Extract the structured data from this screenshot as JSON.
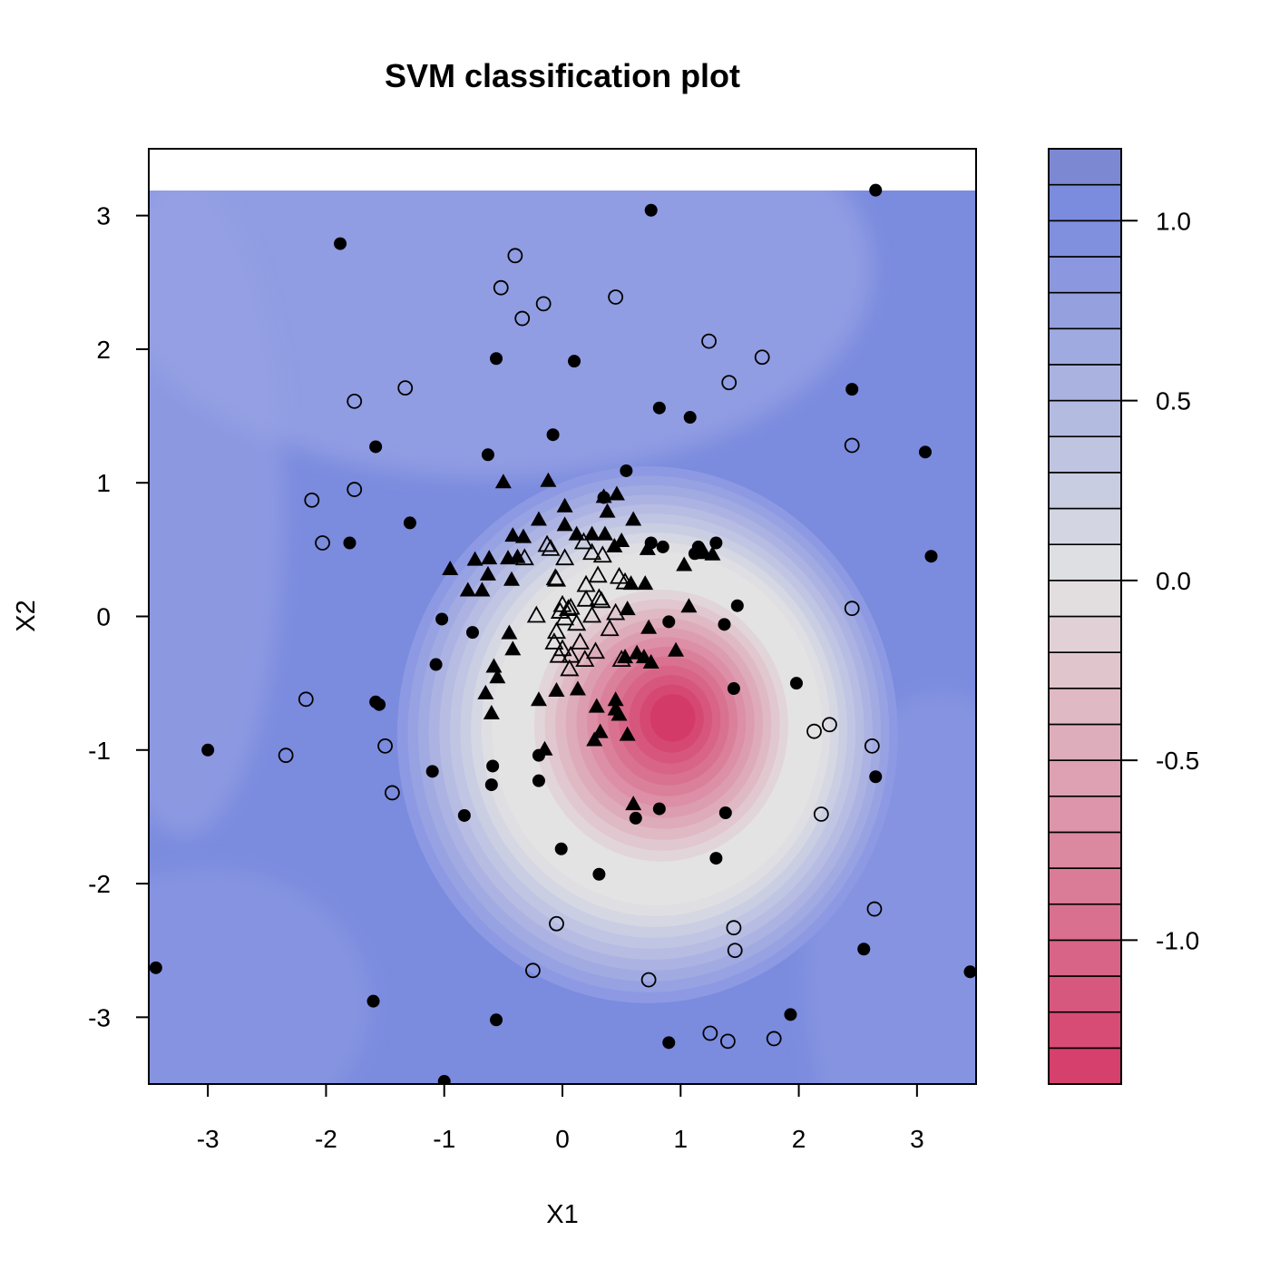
{
  "chart_data": {
    "type": "scatter",
    "title": "SVM classification plot",
    "xlabel": "X1",
    "ylabel": "X2",
    "xlim": [
      -3.5,
      3.5
    ],
    "ylim": [
      -3.5,
      3.5
    ],
    "x_ticks": [
      "-3",
      "-2",
      "-1",
      "0",
      "1",
      "2",
      "3"
    ],
    "y_ticks": [
      "3",
      "2",
      "1",
      "0",
      "-1",
      "-2",
      "-3"
    ],
    "grid": false,
    "legend": "none",
    "decision_surface": {
      "type": "filled_contour",
      "colors": {
        "positive": "#7B8BDE",
        "neutral": "#E3E3E3",
        "negative": "#D43A68"
      },
      "peak_negative_center": [
        0.95,
        -0.75
      ],
      "min_value": -1.4,
      "max_value": 1.2
    },
    "colorbar": {
      "tick_labels": [
        "1.0",
        "0.5",
        "0.0",
        "-0.5",
        "-1.0"
      ],
      "tick_values": [
        1.0,
        0.5,
        0.0,
        -0.5,
        -1.0
      ],
      "min": -1.4,
      "max": 1.2,
      "levels": 26
    },
    "series": [
      {
        "marker": "circle-filled",
        "points": [
          [
            2.65,
            3.19
          ],
          [
            0.75,
            3.04
          ],
          [
            -1.88,
            2.79
          ],
          [
            -0.56,
            1.93
          ],
          [
            0.1,
            1.91
          ],
          [
            2.45,
            1.7
          ],
          [
            0.82,
            1.56
          ],
          [
            1.08,
            1.49
          ],
          [
            -1.58,
            1.27
          ],
          [
            -0.08,
            1.36
          ],
          [
            3.07,
            1.23
          ],
          [
            -0.63,
            1.21
          ],
          [
            0.54,
            1.09
          ],
          [
            0.35,
            0.89
          ],
          [
            -1.29,
            0.7
          ],
          [
            -1.8,
            0.55
          ],
          [
            0.75,
            0.55
          ],
          [
            1.15,
            0.52
          ],
          [
            1.3,
            0.55
          ],
          [
            0.85,
            0.52
          ],
          [
            1.12,
            0.47
          ],
          [
            3.12,
            0.45
          ],
          [
            1.48,
            0.08
          ],
          [
            -1.02,
            -0.02
          ],
          [
            -0.76,
            -0.12
          ],
          [
            0.9,
            -0.04
          ],
          [
            1.37,
            -0.06
          ],
          [
            -1.07,
            -0.36
          ],
          [
            1.45,
            -0.54
          ],
          [
            1.98,
            -0.5
          ],
          [
            -1.58,
            -0.64
          ],
          [
            -1.55,
            -0.66
          ],
          [
            -3.0,
            -1.0
          ],
          [
            -0.59,
            -1.12
          ],
          [
            -1.1,
            -1.16
          ],
          [
            -0.2,
            -1.04
          ],
          [
            -0.2,
            -1.23
          ],
          [
            -0.6,
            -1.26
          ],
          [
            2.65,
            -1.2
          ],
          [
            -0.83,
            -1.49
          ],
          [
            0.82,
            -1.44
          ],
          [
            0.62,
            -1.51
          ],
          [
            1.38,
            -1.47
          ],
          [
            -0.01,
            -1.74
          ],
          [
            1.3,
            -1.81
          ],
          [
            0.31,
            -1.93
          ],
          [
            2.55,
            -2.49
          ],
          [
            -3.44,
            -2.63
          ],
          [
            3.45,
            -2.66
          ],
          [
            -1.6,
            -2.88
          ],
          [
            1.93,
            -2.98
          ],
          [
            -0.56,
            -3.02
          ],
          [
            0.9,
            -3.19
          ],
          [
            -1.0,
            -3.48
          ]
        ]
      },
      {
        "marker": "circle-open",
        "points": [
          [
            -0.4,
            2.7
          ],
          [
            -0.52,
            2.46
          ],
          [
            0.45,
            2.39
          ],
          [
            -0.16,
            2.34
          ],
          [
            -0.34,
            2.23
          ],
          [
            1.24,
            2.06
          ],
          [
            1.69,
            1.94
          ],
          [
            -1.33,
            1.71
          ],
          [
            1.41,
            1.75
          ],
          [
            -1.76,
            1.61
          ],
          [
            2.45,
            1.28
          ],
          [
            -1.76,
            0.95
          ],
          [
            -2.12,
            0.87
          ],
          [
            -2.03,
            0.55
          ],
          [
            2.45,
            0.06
          ],
          [
            -2.17,
            -0.62
          ],
          [
            2.26,
            -0.81
          ],
          [
            2.13,
            -0.86
          ],
          [
            -1.5,
            -0.97
          ],
          [
            2.62,
            -0.97
          ],
          [
            -2.34,
            -1.04
          ],
          [
            -1.44,
            -1.32
          ],
          [
            2.19,
            -1.48
          ],
          [
            2.64,
            -2.19
          ],
          [
            -0.05,
            -2.3
          ],
          [
            1.45,
            -2.33
          ],
          [
            1.46,
            -2.5
          ],
          [
            -0.25,
            -2.65
          ],
          [
            0.73,
            -2.72
          ],
          [
            1.25,
            -3.12
          ],
          [
            1.4,
            -3.18
          ],
          [
            1.79,
            -3.16
          ]
        ]
      },
      {
        "marker": "triangle-filled",
        "points": [
          [
            -0.5,
            1.0
          ],
          [
            -0.12,
            1.01
          ],
          [
            0.35,
            0.89
          ],
          [
            0.46,
            0.91
          ],
          [
            0.02,
            0.82
          ],
          [
            0.38,
            0.78
          ],
          [
            -0.2,
            0.72
          ],
          [
            0.02,
            0.68
          ],
          [
            0.6,
            0.72
          ],
          [
            0.25,
            0.61
          ],
          [
            0.36,
            0.61
          ],
          [
            -0.42,
            0.6
          ],
          [
            -0.33,
            0.59
          ],
          [
            0.5,
            0.56
          ],
          [
            0.12,
            0.61
          ],
          [
            -0.74,
            0.42
          ],
          [
            -0.62,
            0.43
          ],
          [
            -0.46,
            0.43
          ],
          [
            -0.38,
            0.44
          ],
          [
            0.44,
            0.52
          ],
          [
            0.72,
            0.5
          ],
          [
            1.2,
            0.47
          ],
          [
            -0.95,
            0.35
          ],
          [
            -0.63,
            0.31
          ],
          [
            -0.43,
            0.27
          ],
          [
            1.03,
            0.38
          ],
          [
            1.27,
            0.46
          ],
          [
            0.7,
            0.24
          ],
          [
            -0.8,
            0.19
          ],
          [
            -0.68,
            0.19
          ],
          [
            0.58,
            0.24
          ],
          [
            0.55,
            0.05
          ],
          [
            1.07,
            0.07
          ],
          [
            -0.45,
            -0.13
          ],
          [
            0.73,
            -0.09
          ],
          [
            -0.42,
            -0.25
          ],
          [
            0.63,
            -0.28
          ],
          [
            0.69,
            -0.31
          ],
          [
            0.53,
            -0.31
          ],
          [
            0.75,
            -0.35
          ],
          [
            0.96,
            -0.26
          ],
          [
            -0.58,
            -0.38
          ],
          [
            -0.55,
            -0.46
          ],
          [
            -0.05,
            -0.56
          ],
          [
            0.13,
            -0.55
          ],
          [
            -0.65,
            -0.58
          ],
          [
            -0.2,
            -0.63
          ],
          [
            -0.6,
            -0.73
          ],
          [
            0.45,
            -0.63
          ],
          [
            0.29,
            -0.68
          ],
          [
            0.45,
            -0.7
          ],
          [
            0.48,
            -0.74
          ],
          [
            0.32,
            -0.87
          ],
          [
            0.27,
            -0.93
          ],
          [
            0.55,
            -0.89
          ],
          [
            -0.15,
            -1.0
          ],
          [
            0.6,
            -1.41
          ]
        ]
      },
      {
        "marker": "triangle-open",
        "points": [
          [
            -0.13,
            0.53
          ],
          [
            -0.1,
            0.5
          ],
          [
            -0.32,
            0.43
          ],
          [
            0.02,
            0.43
          ],
          [
            0.34,
            0.45
          ],
          [
            0.25,
            0.47
          ],
          [
            0.18,
            0.55
          ],
          [
            -0.05,
            0.27
          ],
          [
            -0.06,
            0.28
          ],
          [
            0.3,
            0.3
          ],
          [
            0.48,
            0.29
          ],
          [
            0.53,
            0.25
          ],
          [
            0.2,
            0.23
          ],
          [
            0.31,
            0.13
          ],
          [
            0.33,
            0.11
          ],
          [
            0.2,
            0.12
          ],
          [
            0.07,
            0.06
          ],
          [
            0.0,
            0.08
          ],
          [
            -0.02,
            0.03
          ],
          [
            0.05,
            0.05
          ],
          [
            -0.22,
            0.0
          ],
          [
            0.02,
            -0.02
          ],
          [
            0.25,
            0.0
          ],
          [
            0.4,
            -0.1
          ],
          [
            0.12,
            -0.06
          ],
          [
            -0.05,
            -0.12
          ],
          [
            -0.07,
            -0.2
          ],
          [
            0.0,
            -0.25
          ],
          [
            0.15,
            -0.2
          ],
          [
            0.07,
            -0.3
          ],
          [
            0.28,
            -0.27
          ],
          [
            0.5,
            -0.33
          ],
          [
            0.06,
            -0.4
          ],
          [
            -0.03,
            -0.3
          ],
          [
            0.19,
            -0.33
          ],
          [
            0.45,
            0.02
          ]
        ]
      }
    ]
  }
}
